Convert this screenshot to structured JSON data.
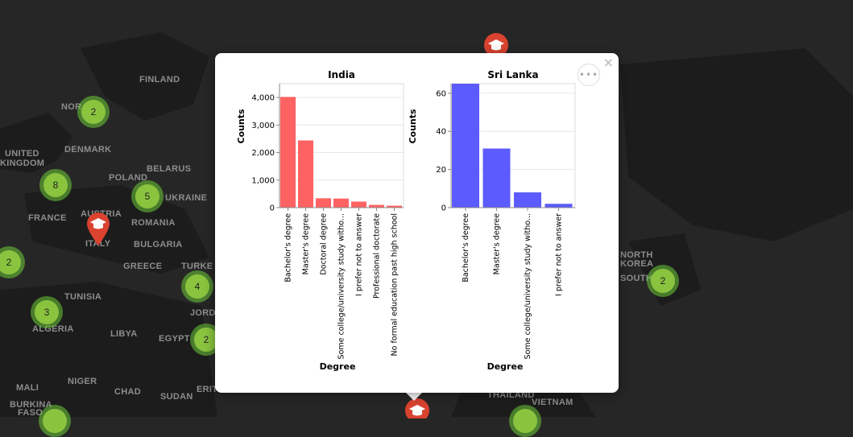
{
  "map": {
    "labels": [
      "FINLAND",
      "NOR",
      "UNITED",
      "KINGDOM",
      "DENMARK",
      "BELARUS",
      "POLAND",
      "UKRAINE",
      "FRANCE",
      "AUSTRIA",
      "ROMANIA",
      "BULGARIA",
      "ITALY",
      "GREECE",
      "TURKE",
      "TUNISIA",
      "ALGERIA",
      "LIBYA",
      "EGYPT",
      "JORD",
      "MALI",
      "NIGER",
      "CHAD",
      "SUDAN",
      "ERIT",
      "BURKINA",
      "FASO",
      "NORTH",
      "KOREA",
      "SOUTH",
      "THAILAND",
      "VIETNAM"
    ],
    "clusters": [
      {
        "count": "2"
      },
      {
        "count": "8"
      },
      {
        "count": "5"
      },
      {
        "count": "2"
      },
      {
        "count": "3"
      },
      {
        "count": "4"
      },
      {
        "count": "2"
      },
      {
        "count": "2"
      }
    ],
    "marker_icon": "graduation-cap-icon",
    "colors": {
      "background": "#262626",
      "land": "#1a1a1a",
      "marker": "#d9432f",
      "cluster": "#8ac43f"
    }
  },
  "popup": {
    "close_label": "×",
    "more_label": "•••"
  },
  "chart_data": [
    {
      "type": "bar",
      "title": "India",
      "xlabel": "Degree",
      "ylabel": "Counts",
      "categories": [
        "Bachelor's degree",
        "Master's degree",
        "Doctoral degree",
        "Some college/university study witho...",
        "I prefer not to answer",
        "Professional doctorate",
        "No formal education past high school"
      ],
      "values": [
        4020,
        2440,
        340,
        330,
        220,
        100,
        70
      ],
      "ylim": [
        0,
        4500
      ],
      "yticks": [
        0,
        1000,
        2000,
        3000,
        4000
      ],
      "ytick_labels": [
        "0",
        "1,000",
        "2,000",
        "3,000",
        "4,000"
      ],
      "color": "#ff6262",
      "grid": true
    },
    {
      "type": "bar",
      "title": "Sri Lanka",
      "xlabel": "Degree",
      "ylabel": "Counts",
      "categories": [
        "Bachelor's degree",
        "Master's degree",
        "Some college/university study witho...",
        "I prefer not to answer"
      ],
      "values": [
        65,
        31,
        8,
        2
      ],
      "ylim": [
        0,
        65
      ],
      "yticks": [
        0,
        20,
        40,
        60
      ],
      "ytick_labels": [
        "0",
        "20",
        "40",
        "60"
      ],
      "color": "#5b5bff",
      "grid": true
    }
  ]
}
